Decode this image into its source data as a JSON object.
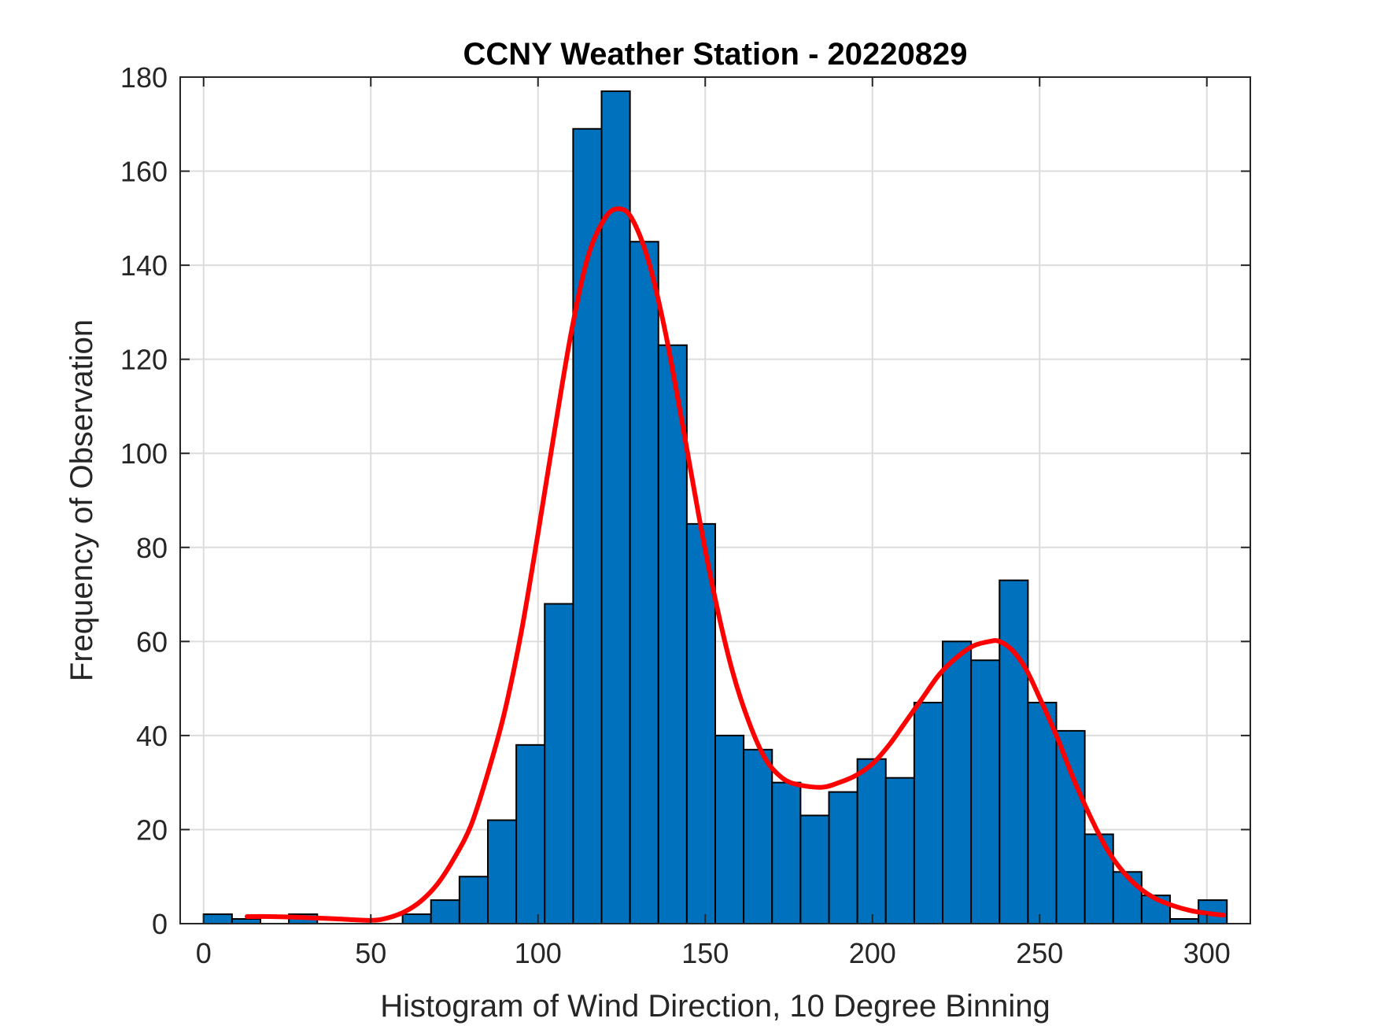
{
  "chart_data": {
    "type": "bar",
    "title": "CCNY Weather Station - 20220829",
    "xlabel": "Histogram of Wind Direction, 10 Degree Binning",
    "ylabel": "Frequency of Observation",
    "xlim": [
      -7,
      313
    ],
    "ylim": [
      0,
      180
    ],
    "xticks": [
      0,
      50,
      100,
      150,
      200,
      250,
      300
    ],
    "yticks": [
      0,
      20,
      40,
      60,
      80,
      100,
      120,
      140,
      160,
      180
    ],
    "grid": true,
    "bin_width": 8.5,
    "bin_edges": [
      0,
      8.5,
      17,
      25.5,
      34,
      42.5,
      51,
      59.5,
      68,
      76.5,
      85,
      93.5,
      102,
      110.5,
      119,
      127.5,
      136,
      144.5,
      153,
      161.5,
      170,
      178.5,
      187,
      195.5,
      204,
      212.5,
      221,
      229.5,
      238,
      246.5,
      255,
      263.5,
      272,
      280.5,
      289,
      297.5,
      306
    ],
    "values": [
      2,
      1,
      0,
      2,
      0,
      0,
      0,
      2,
      5,
      10,
      22,
      38,
      68,
      169,
      177,
      145,
      123,
      85,
      40,
      37,
      30,
      23,
      28,
      35,
      31,
      47,
      60,
      56,
      73,
      47,
      41,
      19,
      11,
      6,
      1,
      5
    ],
    "bar_color": "#0072BD",
    "bar_edge_color": "#000000",
    "fit_curve": {
      "color": "#FF0000",
      "x": [
        13,
        20,
        30,
        40,
        50,
        55,
        60,
        65,
        70,
        75,
        80,
        85,
        90,
        95,
        100,
        105,
        110,
        115,
        120,
        124,
        128,
        133,
        138,
        143,
        148,
        153,
        158,
        163,
        168,
        173,
        178,
        185,
        190,
        195,
        200,
        205,
        210,
        215,
        220,
        225,
        230,
        235,
        238,
        242,
        246,
        250,
        255,
        260,
        265,
        270,
        275,
        280,
        285,
        290,
        295,
        300,
        305
      ],
      "y": [
        1.5,
        1.5,
        1.3,
        1.0,
        0.7,
        1.2,
        2.5,
        4.8,
        8.5,
        14,
        21,
        32,
        45,
        62,
        83,
        105,
        126,
        142,
        150,
        152,
        150,
        141,
        126,
        107,
        87,
        69,
        54,
        43,
        35,
        31,
        29.5,
        29,
        30,
        31.5,
        34,
        38,
        43,
        48,
        53,
        56.5,
        59,
        60,
        60,
        58,
        54,
        48,
        40,
        31,
        23,
        16,
        11,
        7.5,
        5.2,
        3.8,
        2.8,
        2.2,
        1.8
      ]
    }
  }
}
